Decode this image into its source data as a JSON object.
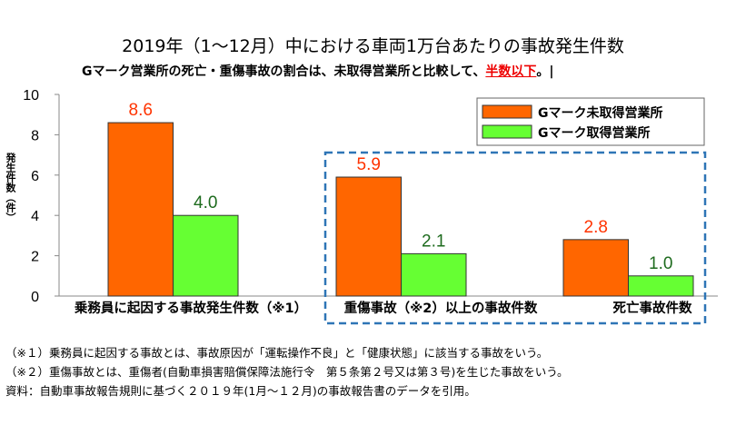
{
  "title": "2019年（1～12月）中における車両1万台あたりの事故発生件数",
  "subtitle_pre": "Gマーク営業所の死亡・重傷事故の割合は、未取得営業所と比較して、",
  "subtitle_highlight": "半数以下",
  "subtitle_post": "。|",
  "notes": [
    "（※１）乗務員に起因する事故とは、事故原因が「運転操作不良」と「健康状態」に該当する事故をいう。",
    "（※２）重傷事故とは、重傷者(自動車損害賠償保障法施行令　第５条第２号又は第３号)を生じた事故をいう。",
    " 資料：自動車事故報告規則に基づく２０１９年(1月～１２月)の事故報告書のデータを引用。"
  ],
  "chart_data": {
    "type": "bar",
    "title": "2019年（1～12月）中における車両1万台あたりの事故発生件数",
    "ylabel": "発生件数（件）",
    "xlabel": "",
    "ylim": [
      0,
      10
    ],
    "yticks": [
      "0",
      "2",
      "4",
      "6",
      "8",
      "10"
    ],
    "categories": [
      "乗務員に起因する事故発生件数（※1）",
      "重傷事故（※2）以上の事故件数",
      "死亡事故件数"
    ],
    "series": [
      {
        "name": "Gマーク未取得営業所",
        "values": [
          8.6,
          5.9,
          2.8
        ],
        "labels": [
          "8.6",
          "5.9",
          "2.8"
        ],
        "color": "#FF6600",
        "label_color": "#FF3300"
      },
      {
        "name": "Gマーク取得営業所",
        "values": [
          4.0,
          2.1,
          1.0
        ],
        "labels": [
          "4.0",
          "2.1",
          "1.0"
        ],
        "color": "#66FF33",
        "label_color": "#1E6B1E"
      }
    ],
    "legend": "top-right",
    "highlight_box_color": "#2E75B6",
    "grid": false
  }
}
